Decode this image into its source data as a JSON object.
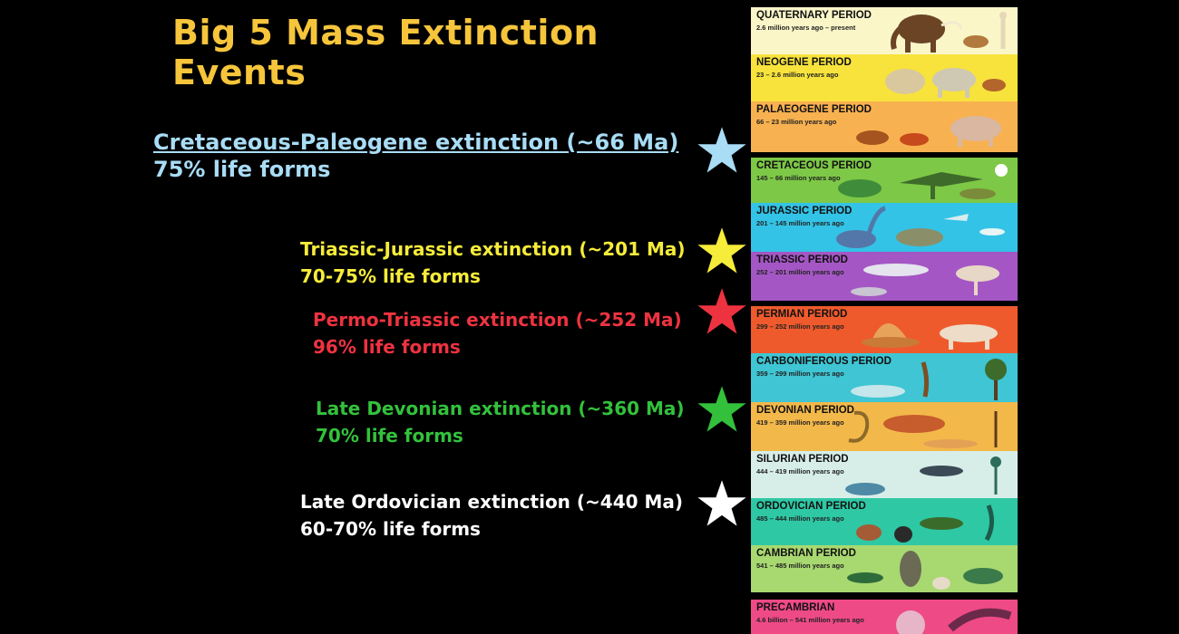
{
  "title": "Big 5 Mass Extinction Events",
  "events": [
    {
      "name": "Cretaceous-Paleogene extinction (~66 Ma)",
      "pct": "75% life forms",
      "color": "#a9dcf5"
    },
    {
      "name": "Triassic-Jurassic extinction (~201 Ma)",
      "pct": "70-75% life forms",
      "color": "#f6ec3a"
    },
    {
      "name": "Permo-Triassic extinction (~252 Ma)",
      "pct": "96% life forms",
      "color": "#ee3340"
    },
    {
      "name": "Late Devonian extinction (~360 Ma)",
      "pct": "70% life forms",
      "color": "#33c13c"
    },
    {
      "name": "Late Ordovician extinction (~440 Ma)",
      "pct": "60-70% life forms",
      "color": "#ffffff"
    }
  ],
  "periods": [
    {
      "name": "QUATERNARY PERIOD",
      "dates": "2.6 million years ago – present",
      "color": "#faf6c8"
    },
    {
      "name": "NEOGENE PERIOD",
      "dates": "23 – 2.6 million years ago",
      "color": "#f7e33c"
    },
    {
      "name": "PALAEOGENE PERIOD",
      "dates": "66 – 23 million years ago",
      "color": "#f8b150"
    },
    {
      "name": "CRETACEOUS PERIOD",
      "dates": "145 – 66 million years ago",
      "color": "#7dc846"
    },
    {
      "name": "JURASSIC PERIOD",
      "dates": "201 – 145 million years ago",
      "color": "#33c3e6"
    },
    {
      "name": "TRIASSIC PERIOD",
      "dates": "252 – 201 million years ago",
      "color": "#a457c4"
    },
    {
      "name": "PERMIAN PERIOD",
      "dates": "299 – 252 million years ago",
      "color": "#ef5a2c"
    },
    {
      "name": "CARBONIFEROUS PERIOD",
      "dates": "359 – 299 million years ago",
      "color": "#3fc5d3"
    },
    {
      "name": "DEVONIAN PERIOD",
      "dates": "419 – 359 million years ago",
      "color": "#f3b84a"
    },
    {
      "name": "SILURIAN PERIOD",
      "dates": "444 – 419 million years ago",
      "color": "#d7eee8"
    },
    {
      "name": "ORDOVICIAN PERIOD",
      "dates": "485 – 444 million years ago",
      "color": "#2ec8a4"
    },
    {
      "name": "CAMBRIAN PERIOD",
      "dates": "541 – 485 million years ago",
      "color": "#a8d870"
    },
    {
      "name": "PRECAMBRIAN",
      "dates": "4.6 billion – 541 million years ago",
      "color": "#ee4a86"
    }
  ],
  "icons": [
    "star-icon",
    "mammoth-icon",
    "dinosaur-icon",
    "fish-icon",
    "trilobite-icon"
  ]
}
